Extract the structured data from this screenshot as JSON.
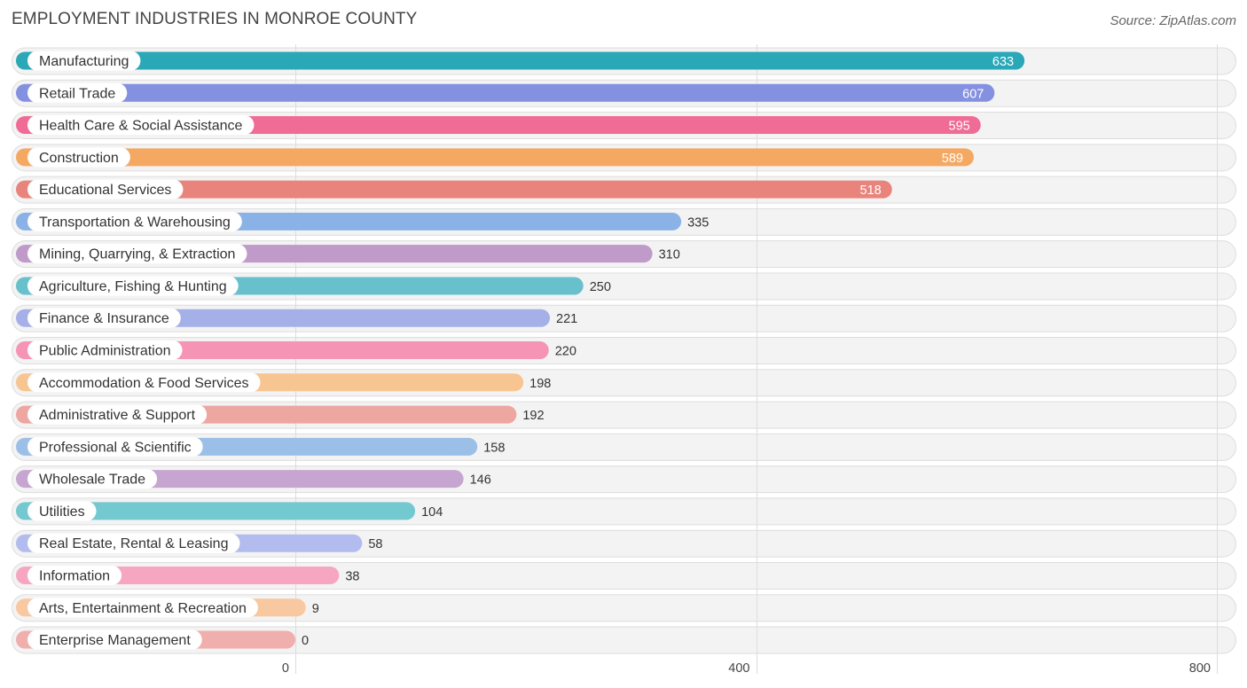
{
  "header": {
    "title": "EMPLOYMENT INDUSTRIES IN MONROE COUNTY",
    "source": "Source: ZipAtlas.com"
  },
  "chart_data": {
    "type": "bar",
    "orientation": "horizontal",
    "title": "EMPLOYMENT INDUSTRIES IN MONROE COUNTY",
    "xlabel": "",
    "ylabel": "",
    "xlim": [
      0,
      800
    ],
    "ticks": [
      0,
      400,
      800
    ],
    "tick_labels": [
      "0",
      "400",
      "800"
    ],
    "grid": true,
    "categories": [
      "Manufacturing",
      "Retail Trade",
      "Health Care & Social Assistance",
      "Construction",
      "Educational Services",
      "Transportation & Warehousing",
      "Mining, Quarrying, & Extraction",
      "Agriculture, Fishing & Hunting",
      "Finance & Insurance",
      "Public Administration",
      "Accommodation & Food Services",
      "Administrative & Support",
      "Professional & Scientific",
      "Wholesale Trade",
      "Utilities",
      "Real Estate, Rental & Leasing",
      "Information",
      "Arts, Entertainment & Recreation",
      "Enterprise Management"
    ],
    "values": [
      633,
      607,
      595,
      589,
      518,
      335,
      310,
      250,
      221,
      220,
      198,
      192,
      158,
      146,
      104,
      58,
      38,
      9,
      0
    ],
    "value_labels": [
      "633",
      "607",
      "595",
      "589",
      "518",
      "335",
      "310",
      "250",
      "221",
      "220",
      "198",
      "192",
      "158",
      "146",
      "104",
      "58",
      "38",
      "9",
      "0"
    ],
    "colors": [
      "#2aa8b8",
      "#8490e0",
      "#f06b96",
      "#f5a862",
      "#e8847c",
      "#8ab2e6",
      "#c09ac8",
      "#68c0cc",
      "#a6b0e8",
      "#f594b4",
      "#f7c592",
      "#eda6a0",
      "#9cbfe8",
      "#c6a6d0",
      "#74c8d0",
      "#b2bcee",
      "#f7a6c2",
      "#f8c8a0",
      "#f0aeac"
    ]
  }
}
